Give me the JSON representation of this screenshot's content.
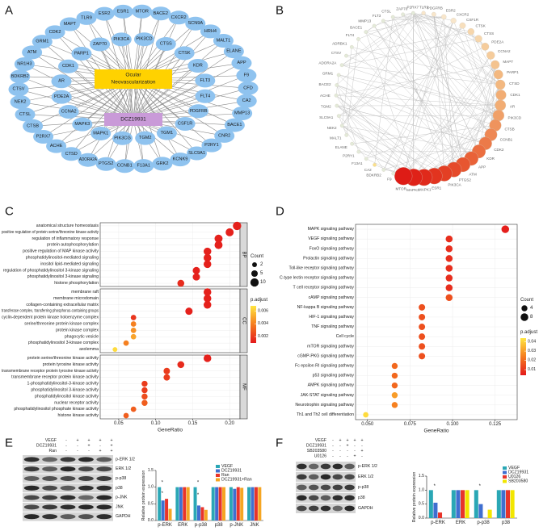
{
  "panel_labels": [
    "A",
    "B",
    "C",
    "D",
    "E",
    "F"
  ],
  "network_a": {
    "node_color": "#8fc3ef",
    "disease_color": "#ffd200",
    "drug_color": "#c99ad8",
    "disease": [
      "Ocular",
      "Neovascularization"
    ],
    "drug": "DCZ19931",
    "outer_nodes": [
      "ESR1",
      "MTOR",
      "BACE2",
      "CXCR2",
      "SCN9A",
      "HRH4",
      "MALT1",
      "ELANE",
      "APP",
      "F9",
      "CFD",
      "CA2",
      "MMP13",
      "BACE1",
      "CNR2",
      "P2RY1",
      "SLC9A1",
      "KCNK9",
      "GRK2",
      "F13A1",
      "CCNB1",
      "PTGS2",
      "ADORA2A",
      "CTSD",
      "ACHE",
      "P2RX7",
      "CTSB",
      "CTSL",
      "NEK2",
      "CTSV",
      "BDKRB2",
      "NR1H3",
      "ATM",
      "GRM1",
      "CDK2",
      "MAPT",
      "TLR9",
      "ESR2"
    ],
    "inner_nodes": [
      "PIK3CD",
      "CTSS",
      "CTSK",
      "KDR",
      "FLT3",
      "FLT4",
      "PDGFRB",
      "CSF1R",
      "TGM1",
      "TGM2",
      "PIK3CG",
      "MAPK1",
      "MAPK3",
      "CCNA2",
      "PDE2A",
      "AR",
      "CDK1",
      "PARP1",
      "ZAP70",
      "PIK3CA"
    ]
  },
  "network_b": {
    "nodes": [
      {
        "name": "TLR9",
        "color": "#f8e6cb"
      },
      {
        "name": "PDGFRB",
        "color": "#f8e6cb"
      },
      {
        "name": "ESR2",
        "color": "#f8e6cb"
      },
      {
        "name": "CXCR2",
        "color": "#f8e6cb"
      },
      {
        "name": "CSF1R",
        "color": "#f7dfbd"
      },
      {
        "name": "CTSK",
        "color": "#f6d6ac"
      },
      {
        "name": "CTSS",
        "color": "#f6d6ac"
      },
      {
        "name": "PDE2A",
        "color": "#f5cc9c"
      },
      {
        "name": "CCNA2",
        "color": "#f5cc9c"
      },
      {
        "name": "MAPT",
        "color": "#f4c38e"
      },
      {
        "name": "PARP1",
        "color": "#f3b880"
      },
      {
        "name": "CTSD",
        "color": "#f3b880"
      },
      {
        "name": "CDK1",
        "color": "#f2ad74"
      },
      {
        "name": "AR",
        "color": "#f2ad74"
      },
      {
        "name": "PIK3CD",
        "color": "#f0a068"
      },
      {
        "name": "CTSB",
        "color": "#ef935d"
      },
      {
        "name": "CCNB1",
        "color": "#ee8753"
      },
      {
        "name": "CDK2",
        "color": "#ec7a49"
      },
      {
        "name": "KDR",
        "color": "#eb6e40"
      },
      {
        "name": "APP",
        "color": "#e96238"
      },
      {
        "name": "ATM",
        "color": "#e75630"
      },
      {
        "name": "PTGS2",
        "color": "#e54a2a"
      },
      {
        "name": "PIK3CA",
        "color": "#e33f24"
      },
      {
        "name": "ESR1",
        "color": "#e2341f"
      },
      {
        "name": "MAPK1",
        "color": "#e02a1b"
      },
      {
        "name": "MAPK3",
        "color": "#df2218"
      },
      {
        "name": "MTOR",
        "color": "#de1c16"
      },
      {
        "name": "F9",
        "color": "#e3ead9"
      },
      {
        "name": "BDKRB2",
        "color": "#e3ead9"
      },
      {
        "name": "CA2",
        "color": "#fbe08a"
      },
      {
        "name": "F13A1",
        "color": "#e3ead9"
      },
      {
        "name": "P2RY1",
        "color": "#e3ead9"
      },
      {
        "name": "ELANE",
        "color": "#e3ead9"
      },
      {
        "name": "MALT1",
        "color": "#e3ead9"
      },
      {
        "name": "NEK2",
        "color": "#e3ead9"
      },
      {
        "name": "SLC9A1",
        "color": "#e3ead9"
      },
      {
        "name": "TGM2",
        "color": "#e3ead9"
      },
      {
        "name": "ACHE",
        "color": "#e3ead9"
      },
      {
        "name": "BACE2",
        "color": "#e3ead9"
      },
      {
        "name": "GRM1",
        "color": "#e3ead9"
      },
      {
        "name": "ADORA2A",
        "color": "#e3ead9"
      },
      {
        "name": "CTSV",
        "color": "#e3ead9"
      },
      {
        "name": "ADRBK1",
        "color": "#e3ead9"
      },
      {
        "name": "FLT4",
        "color": "#e3ead9"
      },
      {
        "name": "BACE1",
        "color": "#e3ead9"
      },
      {
        "name": "MMP13",
        "color": "#e3ead9"
      },
      {
        "name": "FLT3",
        "color": "#e3ead9"
      },
      {
        "name": "CTSL",
        "color": "#e3ead9"
      },
      {
        "name": "ZAP70",
        "color": "#e3ead9"
      },
      {
        "name": "P2RX7",
        "color": "#e3ead9"
      }
    ]
  },
  "chart_data": [
    {
      "type": "dot",
      "xlabel": "GeneRatio",
      "xlim": [
        0.025,
        0.214
      ],
      "xticks": [
        0.05,
        {
          "value": 0.1,
          "label": "0.10"
        },
        0.15,
        {
          "value": 0.2,
          "label": "0.20"
        }
      ],
      "facets": [
        {
          "name": "BP",
          "categories": [
            "anatomical structure homeostasis",
            "positive regulation of protein serine/threonine kinase activity",
            "regulation of inflammatory response",
            "protein autophosphorylation",
            "positive regulation of MAP kinase activity",
            "phosphatidylinositol-mediated signaling",
            "inositol lipid-mediated signaling",
            "regulation of phosphatidylinositol 3-kinase signaling",
            "phosphatidylinositol 3-kinase signaling",
            "histone phosphorylation"
          ],
          "values": [
            0.21,
            0.2,
            0.185,
            0.185,
            0.17,
            0.17,
            0.17,
            0.155,
            0.155,
            0.134
          ],
          "counts": [
            10,
            9,
            9,
            9,
            8,
            8,
            8,
            7,
            7,
            6
          ],
          "p_adjust": [
            0.0012,
            0.0012,
            0.0012,
            0.0012,
            0.0012,
            0.0012,
            0.0012,
            0.0012,
            0.0012,
            0.0015
          ]
        },
        {
          "name": "CC",
          "categories": [
            "membrane raft",
            "membrane microdomain",
            "collagen-containing extracellular matrix",
            "transferase complex, transferring phosphorus-containing groups",
            "cyclin-dependent protein kinase holoenzyme complex",
            "serine/threonine protein kinase complex",
            "protein kinase complex",
            "phagocytic vesicle",
            "phosphatidylinositol 3-kinase complex",
            "axolemma"
          ],
          "values": [
            0.17,
            0.17,
            0.17,
            0.145,
            0.07,
            0.07,
            0.07,
            0.07,
            0.06,
            0.045
          ],
          "counts": [
            8,
            8,
            8,
            7,
            3,
            3,
            3,
            3,
            3,
            2
          ],
          "p_adjust": [
            0.0012,
            0.0012,
            0.0012,
            0.0012,
            0.0018,
            0.004,
            0.0045,
            0.005,
            0.004,
            0.0065
          ]
        },
        {
          "name": "MF",
          "categories": [
            "protein serine/threonine kinase activity",
            "protein tyrosine kinase activity",
            "transmembrane receptor protein tyrosine kinase activity",
            "transmembrane receptor protein kinase activity",
            "1-phosphatidylinositol-3-kinase activity",
            "phosphatidylinositol 3-kinase activity",
            "phosphatidylinositol kinase activity",
            "nuclear receptor activity",
            "phosphatidylinositol phosphate kinase activity",
            "histone kinase activity"
          ],
          "values": [
            0.17,
            0.134,
            0.115,
            0.115,
            0.085,
            0.085,
            0.085,
            0.085,
            0.07,
            0.06
          ],
          "counts": [
            8,
            6,
            5,
            5,
            4,
            4,
            4,
            4,
            3,
            3
          ],
          "p_adjust": [
            0.0012,
            0.0015,
            0.002,
            0.002,
            0.002,
            0.002,
            0.0025,
            0.003,
            0.003,
            0.003
          ]
        }
      ],
      "legend": {
        "size_title": "Count",
        "size_ticks": [
          2,
          5,
          10
        ],
        "color_title": "p.adjust",
        "color_ticks": [
          0.006,
          0.004,
          0.002
        ],
        "clim": [
          0.001,
          0.0068
        ],
        "colors": [
          "#e41a1c",
          "#f57c1f",
          "#ffe640"
        ]
      }
    },
    {
      "type": "dot",
      "xlabel": "GeneRatio",
      "xlim": [
        0.043,
        0.138
      ],
      "xticks": [
        {
          "value": 0.05,
          "label": "0.050"
        },
        {
          "value": 0.075,
          "label": "0.075"
        },
        {
          "value": 0.1,
          "label": "0.100"
        },
        {
          "value": 0.125,
          "label": "0.125"
        }
      ],
      "facets": [
        {
          "categories": [
            "MAPK signaling pathway",
            "VEGF signaling pathway",
            "FoxO signaling pathway",
            "Prolactin signaling pathway",
            "Toll-like receptor signaling pathway",
            "C-type lectin receptor signaling pathway",
            "T cell receptor signaling pathway",
            "cAMP signaling pathway",
            "NF-kappa B signaling pathway",
            "HIF-1 signaling pathway",
            "TNF signaling pathway",
            "Cell cycle",
            "mTOR signaling pathway",
            "cGMP-PKG signaling pathway",
            "Fc epsilon RI signaling pathway",
            "p53 signaling pathway",
            "AMPK signaling pathway",
            "JAK-STAT signaling pathway",
            "Neurotrophin signaling pathway",
            "Th1 and Th2 cell differentiation"
          ],
          "values": [
            0.131,
            0.098,
            0.098,
            0.098,
            0.098,
            0.098,
            0.098,
            0.098,
            0.082,
            0.082,
            0.082,
            0.082,
            0.082,
            0.082,
            0.066,
            0.066,
            0.066,
            0.066,
            0.066,
            0.049
          ],
          "counts": [
            8,
            6,
            6,
            6,
            6,
            6,
            6,
            6,
            5,
            5,
            5,
            5,
            5,
            5,
            4,
            4,
            4,
            4,
            4,
            3
          ],
          "p_adjust": [
            0.005,
            0.008,
            0.008,
            0.008,
            0.008,
            0.008,
            0.008,
            0.015,
            0.015,
            0.015,
            0.015,
            0.015,
            0.015,
            0.015,
            0.02,
            0.02,
            0.02,
            0.03,
            0.025,
            0.042
          ]
        }
      ],
      "legend": {
        "size_title": "Count",
        "size_ticks": [
          4,
          8
        ],
        "color_title": "p.adjust",
        "color_ticks": [
          0.04,
          0.03,
          0.02,
          0.01
        ],
        "clim": [
          0.004,
          0.044
        ],
        "colors": [
          "#e41a1c",
          "#f57c1f",
          "#ffe640"
        ]
      }
    },
    {
      "type": "bar",
      "ylabel": "Relative protein expression",
      "ylim": [
        0,
        1.5
      ],
      "yticks": [
        {
          "value": 0,
          "label": "0.0"
        },
        0.5,
        {
          "value": 1,
          "label": "1.0"
        },
        1.5
      ],
      "categories": [
        "p-ERK",
        "ERK",
        "p-p38",
        "p38",
        "p-JNK",
        "JNK"
      ],
      "series": [
        {
          "name": "VEGF",
          "color": "#2aa7b5",
          "values": [
            1.0,
            1.0,
            1.0,
            1.0,
            1.0,
            1.0
          ]
        },
        {
          "name": "DCZ19931",
          "color": "#3f6fd0",
          "values": [
            0.6,
            1.0,
            0.45,
            1.0,
            0.95,
            1.0
          ]
        },
        {
          "name": "Ran",
          "color": "#e8342a",
          "values": [
            0.65,
            1.0,
            0.4,
            1.0,
            1.0,
            1.0
          ]
        },
        {
          "name": "DCZ19931+Ran",
          "color": "#f5a623",
          "values": [
            0.35,
            1.0,
            0.32,
            1.0,
            0.98,
            1.0
          ]
        }
      ],
      "annotations": [
        "*",
        "*",
        "*",
        "*"
      ]
    },
    {
      "type": "bar",
      "ylabel": "Relative protein expression",
      "ylim": [
        0,
        1.5
      ],
      "yticks": [
        {
          "value": 0,
          "label": "0.0"
        },
        0.5,
        {
          "value": 1,
          "label": "1.0"
        },
        1.5
      ],
      "categories": [
        "p-ERK",
        "ERK",
        "p-p38",
        "p38"
      ],
      "series": [
        {
          "name": "VEGF",
          "color": "#2aa7b5",
          "values": [
            1.0,
            1.0,
            1.0,
            1.0
          ]
        },
        {
          "name": "DCZ19931",
          "color": "#3f6fd0",
          "values": [
            0.55,
            1.0,
            0.5,
            1.0
          ]
        },
        {
          "name": "U0126",
          "color": "#e8342a",
          "values": [
            0.2,
            1.0,
            null,
            1.0
          ]
        },
        {
          "name": "SB203580",
          "color": "#f2e600",
          "values": [
            null,
            1.0,
            0.3,
            1.0
          ]
        }
      ],
      "annotations": [
        "*",
        "*"
      ]
    }
  ],
  "blot_e": {
    "conditions": [
      {
        "name": "VEGF",
        "signs": [
          "-",
          "+",
          "+",
          "+",
          "+"
        ]
      },
      {
        "name": "DCZ19931",
        "signs": [
          "-",
          "-",
          "+",
          "-",
          "+"
        ]
      },
      {
        "name": "Ran",
        "signs": [
          "-",
          "-",
          "-",
          "+",
          "+"
        ]
      }
    ],
    "bands": [
      "p-ERK 1/2",
      "ERK 1/2",
      "p-p38",
      "p38",
      "p-JNK",
      "JNK",
      "GAPDH"
    ]
  },
  "blot_f": {
    "conditions": [
      {
        "name": "VEGF",
        "signs": [
          "-",
          "+",
          "+",
          "+",
          "+"
        ]
      },
      {
        "name": "DCZ19931",
        "signs": [
          "-",
          "-",
          "+",
          "-",
          "-"
        ]
      },
      {
        "name": "SB203580",
        "signs": [
          "-",
          "-",
          "-",
          "-",
          "+"
        ]
      },
      {
        "name": "U0126",
        "signs": [
          "-",
          "-",
          "-",
          "+",
          "-"
        ]
      }
    ],
    "bands": [
      "p-ERK 1/2",
      "ERK 1/2",
      "p-p38",
      "p38",
      "GAPDH"
    ]
  }
}
